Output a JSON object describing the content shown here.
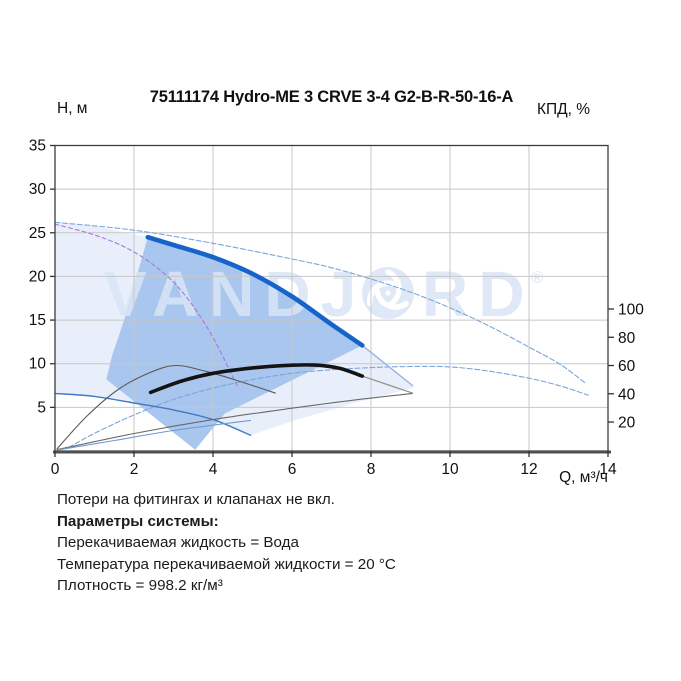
{
  "title": "75111174 Hydro-ME 3 CRVE 3-4 G2-B-R-50-16-A",
  "watermark": {
    "brand_left": "VANDJ",
    "brand_right": "RD",
    "registered_mark": "®",
    "color": "rgba(216,228,245,0.85)"
  },
  "notes": [
    {
      "text": "Потери на фитингах и клапанах не вкл.",
      "style": "normal"
    },
    {
      "text": "Параметры системы:",
      "style": "bold"
    },
    {
      "text": "Перекачиваемая жидкость = Вода",
      "style": "normal"
    },
    {
      "text": "Температура перекачиваемой жидкости = 20 °C",
      "style": "normal"
    },
    {
      "text": "Плотность = 998.2 кг/м³",
      "style": "normal"
    }
  ],
  "chart_data": {
    "type": "line",
    "grid": true,
    "x_axis": {
      "label": "Q, м³/ч",
      "min": 0,
      "max": 14,
      "ticks": [
        0,
        2,
        4,
        6,
        8,
        10,
        12,
        14
      ]
    },
    "y_left": {
      "label": "Н, м",
      "min": 0,
      "max": 35,
      "ticks": [
        5,
        10,
        15,
        20,
        25,
        30,
        35
      ]
    },
    "y_right": {
      "label": "КПД, %",
      "min": 0,
      "max": 108,
      "ticks": [
        20,
        40,
        60,
        80,
        100
      ]
    },
    "colors": {
      "duty_bold_blue": "#1663c9",
      "thin_blue": "#7aa6da",
      "envelope_fill": "#e9effa",
      "duty_region_fill": "#a9c6ee",
      "grid": "#c7c7c7",
      "frame": "#3c3c3c"
    },
    "areas": [
      {
        "name": "operating-envelope",
        "color": "#e9effa",
        "points": [
          [
            0,
            26.2
          ],
          [
            1.2,
            25.6
          ],
          [
            2.35,
            24.5
          ],
          [
            3,
            23.6
          ],
          [
            4,
            22.2
          ],
          [
            5,
            20.3
          ],
          [
            6,
            17.7
          ],
          [
            7,
            14.5
          ],
          [
            7.78,
            12.1
          ],
          [
            9.1,
            7.3
          ],
          [
            7.5,
            5.4
          ],
          [
            6.0,
            3.4
          ],
          [
            4.95,
            1.8
          ],
          [
            4,
            3.6
          ],
          [
            3,
            4.7
          ],
          [
            2,
            5.5
          ],
          [
            1,
            6.25
          ],
          [
            0,
            6.6
          ]
        ]
      },
      {
        "name": "duty-region",
        "color": "#a9c6ee",
        "points": [
          [
            1.3,
            8.2
          ],
          [
            1.45,
            11.0
          ],
          [
            1.75,
            15.0
          ],
          [
            2.35,
            24.5
          ],
          [
            3,
            23.6
          ],
          [
            4,
            22.2
          ],
          [
            5,
            20.3
          ],
          [
            6,
            17.7
          ],
          [
            7,
            14.5
          ],
          [
            7.78,
            12.1
          ],
          [
            4.3,
            4.3
          ],
          [
            3.55,
            0.15
          ]
        ]
      }
    ],
    "series": [
      {
        "name": "max-speed-head-curve",
        "axis": "left",
        "color": "#7aa6da",
        "width": 1.1,
        "dash": "5 2.5",
        "points": [
          [
            0,
            26.2
          ],
          [
            2,
            25.3
          ],
          [
            4,
            23.8
          ],
          [
            6,
            22.0
          ],
          [
            7,
            21.0
          ],
          [
            8,
            19.7
          ],
          [
            9,
            18.2
          ],
          [
            10,
            16.4
          ],
          [
            11,
            14.3
          ],
          [
            12,
            11.9
          ],
          [
            12.8,
            9.9
          ],
          [
            13.45,
            7.7
          ]
        ]
      },
      {
        "name": "max-speed-efficiency-curve",
        "axis": "right",
        "color": "#7aa6da",
        "width": 1.1,
        "dash": "5 2.5",
        "points": [
          [
            0.35,
            2
          ],
          [
            1,
            12
          ],
          [
            2,
            25
          ],
          [
            3,
            36
          ],
          [
            4,
            44
          ],
          [
            5,
            50
          ],
          [
            6,
            54.5
          ],
          [
            7,
            57
          ],
          [
            8,
            58.5
          ],
          [
            9,
            59.3
          ],
          [
            10,
            59
          ],
          [
            11,
            56
          ],
          [
            12,
            51
          ],
          [
            12.8,
            45.5
          ],
          [
            13.5,
            39
          ]
        ]
      },
      {
        "name": "reference-dashed-curve",
        "axis": "left",
        "color": "#aa77d8",
        "width": 1.1,
        "dash": "4 3",
        "points": [
          [
            0,
            26.0
          ],
          [
            1.1,
            24.6
          ],
          [
            2,
            22.8
          ],
          [
            2.8,
            20.2
          ],
          [
            3.4,
            17.2
          ],
          [
            4.0,
            13.0
          ],
          [
            4.62,
            7.4
          ]
        ]
      },
      {
        "name": "min-speed-head-curve",
        "axis": "left",
        "color": "#4279c4",
        "width": 1.4,
        "dash": "",
        "points": [
          [
            0,
            6.6
          ],
          [
            1,
            6.25
          ],
          [
            2,
            5.5
          ],
          [
            3,
            4.7
          ],
          [
            4,
            3.6
          ],
          [
            4.95,
            1.8
          ]
        ]
      },
      {
        "name": "min-speed-efficiency-curve",
        "axis": "right",
        "color": "#5a5a5a",
        "width": 1.1,
        "dash": "",
        "points": [
          [
            0.05,
            1
          ],
          [
            0.8,
            24
          ],
          [
            1.6,
            43
          ],
          [
            2.4,
            55
          ],
          [
            3.06,
            60
          ],
          [
            3.8,
            56
          ],
          [
            4.6,
            49.5
          ],
          [
            5.58,
            40.5
          ]
        ]
      },
      {
        "name": "power-curve-upper",
        "axis": "left",
        "color": "#6a6a6a",
        "width": 1.1,
        "dash": "",
        "points": [
          [
            0.05,
            0.15
          ],
          [
            2,
            2.0
          ],
          [
            4,
            3.6
          ],
          [
            6,
            4.9
          ],
          [
            7.5,
            5.8
          ],
          [
            9.05,
            6.6
          ]
        ]
      },
      {
        "name": "power-curve-lower",
        "axis": "left",
        "color": "#6f9cd4",
        "width": 1.1,
        "dash": "",
        "points": [
          [
            0.05,
            0.1
          ],
          [
            1.5,
            1.2
          ],
          [
            3,
            2.35
          ],
          [
            4.95,
            3.5
          ]
        ]
      },
      {
        "name": "duty-head-extension",
        "axis": "left",
        "color": "#93b6e4",
        "width": 1.4,
        "dash": "",
        "points": [
          [
            7.78,
            12.1
          ],
          [
            9.05,
            7.5
          ]
        ]
      },
      {
        "name": "duty-efficiency-extension",
        "axis": "right",
        "color": "#8f8f8f",
        "width": 1.2,
        "dash": "",
        "points": [
          [
            7.78,
            52.5
          ],
          [
            9.05,
            40.5
          ]
        ]
      },
      {
        "name": "duty-efficiency-curve",
        "axis": "right",
        "color": "#141414",
        "width": 3.6,
        "dash": "",
        "points": [
          [
            2.42,
            41
          ],
          [
            3.2,
            49
          ],
          [
            4,
            54.5
          ],
          [
            5,
            58.3
          ],
          [
            6,
            60.2
          ],
          [
            6.6,
            60.3
          ],
          [
            7.2,
            58
          ],
          [
            7.78,
            52.5
          ]
        ]
      },
      {
        "name": "duty-head-curve",
        "axis": "left",
        "color": "#1663c9",
        "width": 4.6,
        "dash": "",
        "points": [
          [
            2.35,
            24.5
          ],
          [
            3,
            23.6
          ],
          [
            4,
            22.2
          ],
          [
            5,
            20.3
          ],
          [
            6,
            17.7
          ],
          [
            7,
            14.5
          ],
          [
            7.78,
            12.1
          ]
        ]
      }
    ]
  }
}
